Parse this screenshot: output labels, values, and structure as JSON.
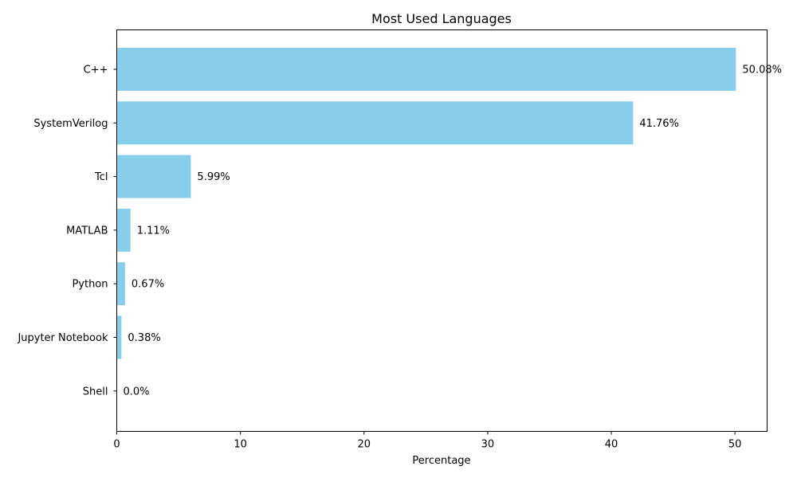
{
  "chart_data": {
    "type": "bar",
    "orientation": "horizontal",
    "title": "Most Used Languages",
    "xlabel": "Percentage",
    "ylabel": "",
    "categories": [
      "C++",
      "SystemVerilog",
      "Tcl",
      "MATLAB",
      "Python",
      "Jupyter Notebook",
      "Shell"
    ],
    "values": [
      50.08,
      41.76,
      5.99,
      1.11,
      0.67,
      0.38,
      0.0
    ],
    "data_labels": [
      "50.08%",
      "41.76%",
      "5.99%",
      "1.11%",
      "0.67%",
      "0.38%",
      "0.0%"
    ],
    "xlim": [
      0,
      52.6
    ],
    "xticks": [
      0,
      10,
      20,
      30,
      40,
      50
    ],
    "grid": false,
    "legend": "none",
    "bar_color": "#87CEEB"
  }
}
